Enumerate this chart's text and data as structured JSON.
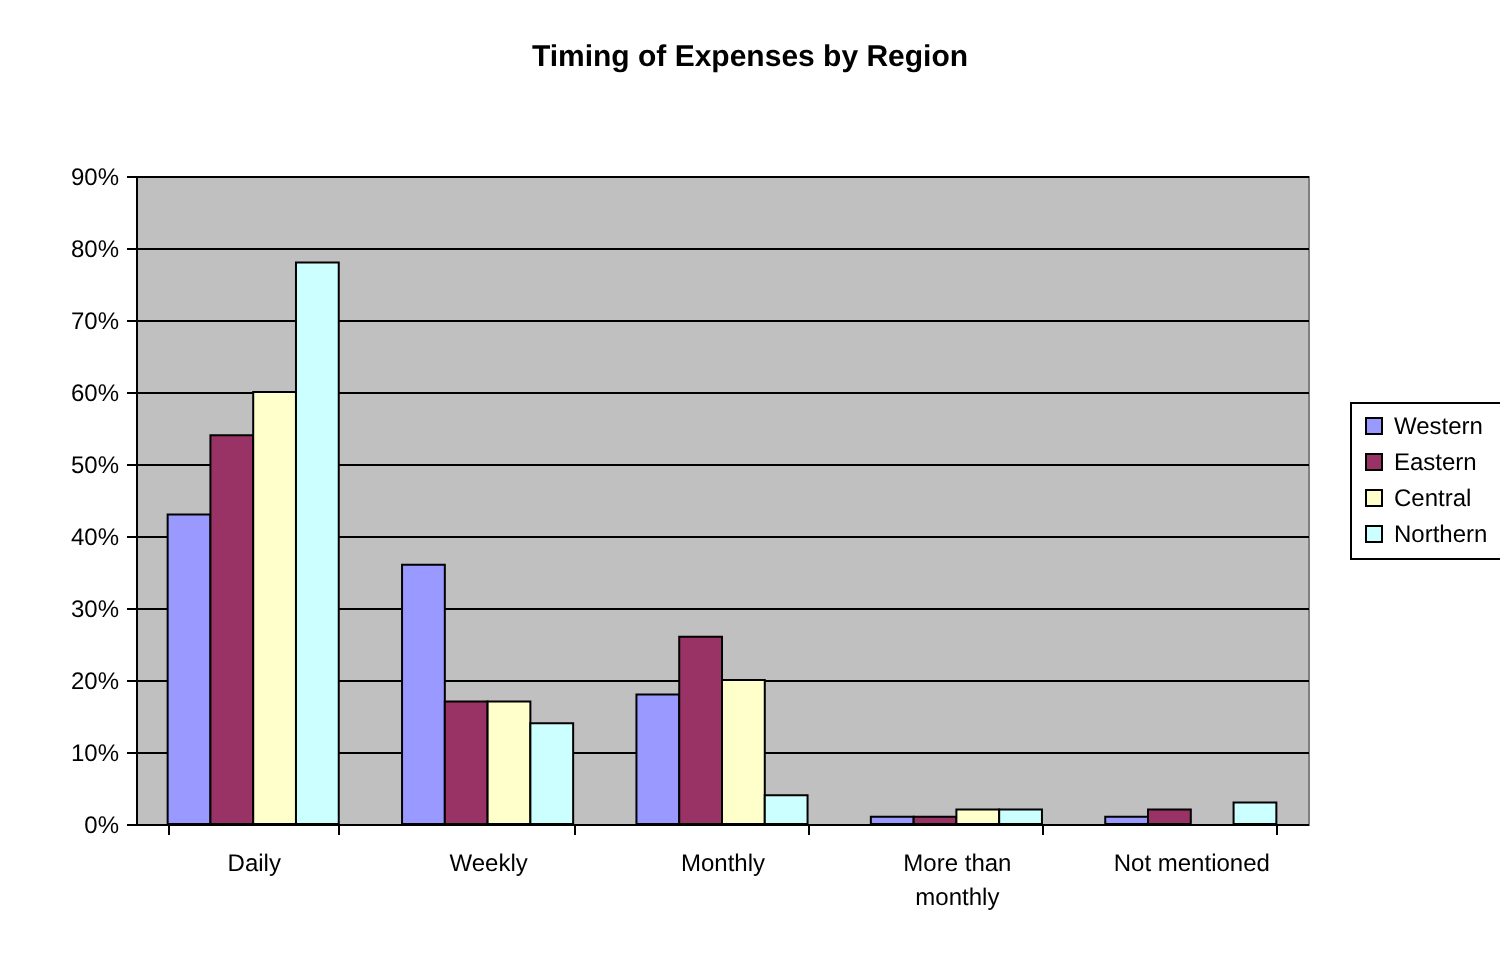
{
  "chart_data": {
    "type": "bar",
    "title": "Timing of Expenses by Region",
    "categories": [
      "Daily",
      "Weekly",
      "Monthly",
      "More than monthly",
      "Not mentioned"
    ],
    "series": [
      {
        "name": "Western",
        "color": "#9999ff",
        "values": [
          43,
          36,
          18,
          1,
          1
        ]
      },
      {
        "name": "Eastern",
        "color": "#993366",
        "values": [
          54,
          17,
          26,
          1,
          2
        ]
      },
      {
        "name": "Central",
        "color": "#ffffcc",
        "values": [
          60,
          17,
          20,
          2,
          null
        ]
      },
      {
        "name": "Northern",
        "color": "#ccffff",
        "values": [
          78,
          14,
          4,
          2,
          3
        ]
      }
    ],
    "ylim": [
      0,
      90
    ],
    "yticks": [
      {
        "value": 0,
        "label": "0%"
      },
      {
        "value": 10,
        "label": "10%"
      },
      {
        "value": 20,
        "label": "20%"
      },
      {
        "value": 30,
        "label": "30%"
      },
      {
        "value": 40,
        "label": "40%"
      },
      {
        "value": 50,
        "label": "50%"
      },
      {
        "value": 60,
        "label": "60%"
      },
      {
        "value": 70,
        "label": "70%"
      },
      {
        "value": 80,
        "label": "80%"
      },
      {
        "value": 90,
        "label": "90%"
      }
    ],
    "grid": "y",
    "legend": "right"
  }
}
